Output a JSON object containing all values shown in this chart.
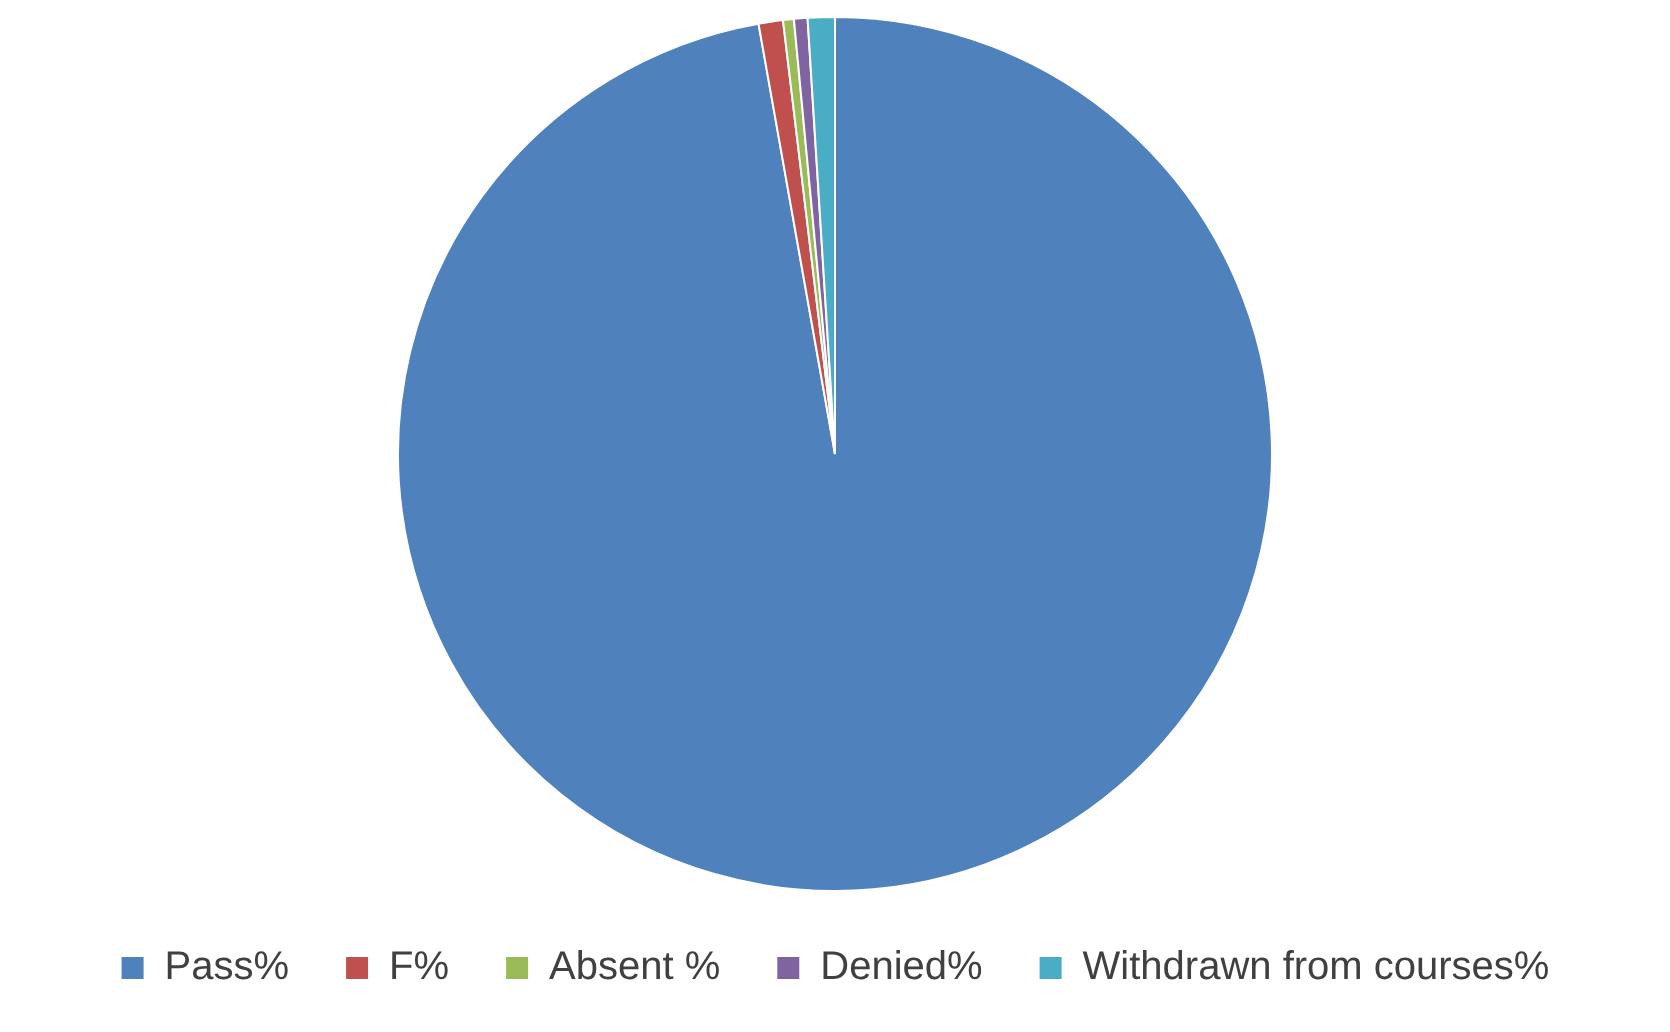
{
  "chart_data": {
    "type": "pie",
    "categories": [
      "Pass%",
      "F%",
      "Absent %",
      "Denied%",
      "Withdrawn from courses%"
    ],
    "values": [
      97.2,
      0.9,
      0.4,
      0.5,
      1.0
    ],
    "colors": [
      "#4f81bd",
      "#c0504d",
      "#9bbb59",
      "#8064a2",
      "#4bacc6"
    ],
    "legend": "bottom"
  }
}
